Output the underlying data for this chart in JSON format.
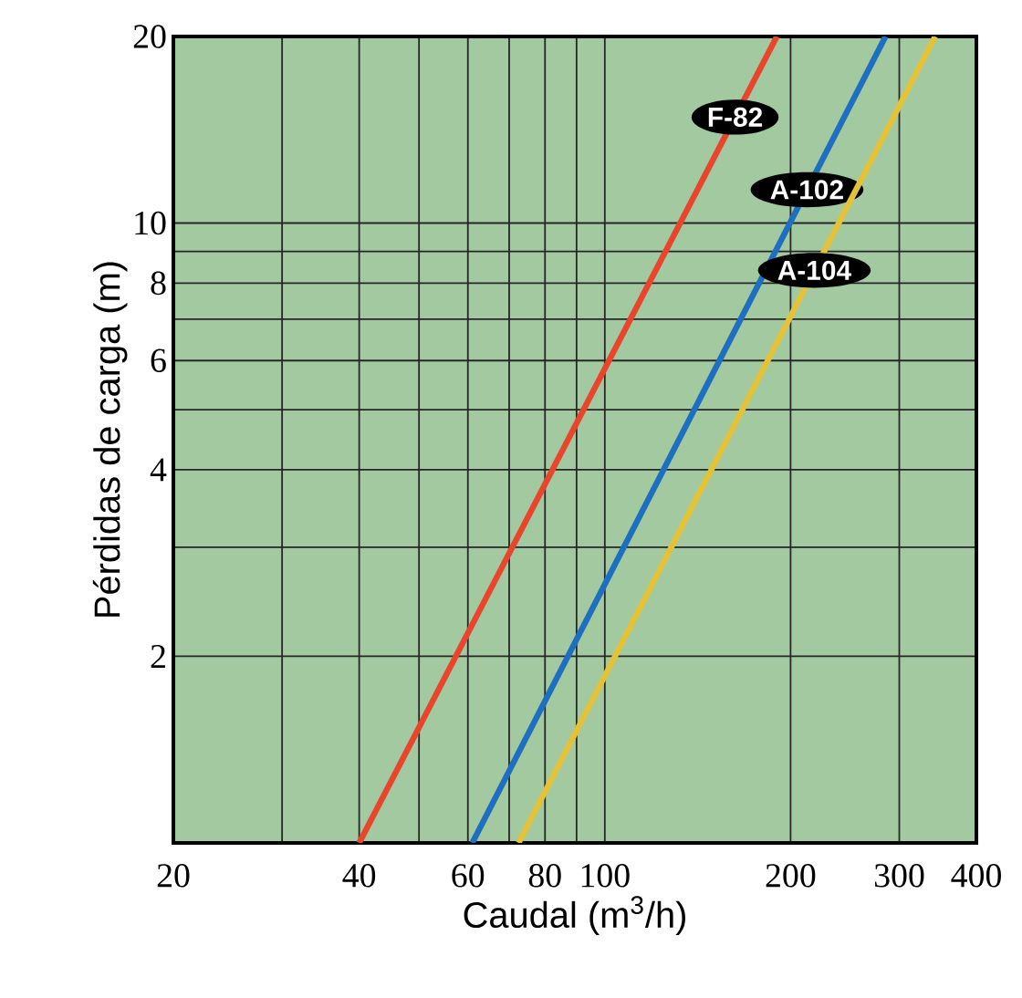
{
  "chart_data": {
    "type": "line",
    "xlabel": "Caudal (m$^{3}$/h)",
    "ylabel": "Pérdidas de carga (m)",
    "log": "xy",
    "grid": true,
    "legend": false,
    "marker": "none",
    "line_style": "solid",
    "xlim": [
      20,
      400
    ],
    "ylim": [
      1,
      20
    ],
    "xticks": [
      20,
      {
        "value": 30,
        "label": null
      },
      40,
      {
        "value": 50,
        "label": null
      },
      60,
      {
        "value": 70,
        "label": null
      },
      80,
      {
        "value": 90,
        "label": null
      },
      100,
      200,
      300,
      400
    ],
    "yticks": [
      {
        "value": 1,
        "label": null
      },
      2,
      {
        "value": 3,
        "label": null
      },
      4,
      {
        "value": 5,
        "label": null
      },
      6,
      {
        "value": 7,
        "label": null
      },
      8,
      {
        "value": 9,
        "label": null
      },
      10,
      20
    ],
    "series": [
      {
        "name": "F-82",
        "color": "#e8452c",
        "x": [
          40,
          190
        ],
        "values": [
          1,
          20
        ]
      },
      {
        "name": "A-102",
        "color": "#1e6fc0",
        "x": [
          61,
          285
        ],
        "values": [
          1,
          20
        ]
      },
      {
        "name": "A-104",
        "color": "#e3c23a",
        "x": [
          72.5,
          343
        ],
        "values": [
          1,
          20
        ]
      }
    ]
  }
}
